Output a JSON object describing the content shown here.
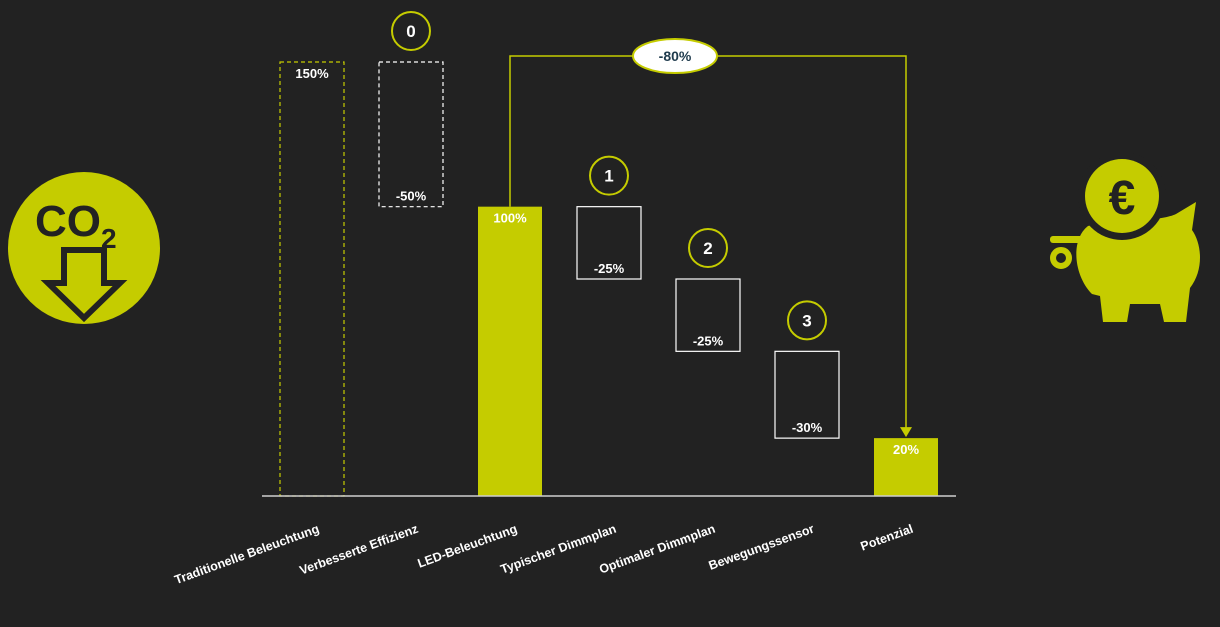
{
  "colors": {
    "background": "#222222",
    "accent": "#c5cc00",
    "text": "#ffffff",
    "axis": "#cfcfcf",
    "badge_text": "#1f3b4d"
  },
  "icons": {
    "left": "co2-reduction-icon",
    "left_text": "CO",
    "left_subscript": "2",
    "right": "piggy-bank-euro-icon",
    "right_symbol": "€"
  },
  "chart_data": {
    "type": "waterfall",
    "title": "",
    "xlabel": "",
    "ylabel": "",
    "ylim": [
      0,
      150
    ],
    "grid": false,
    "categories": [
      "Traditionelle Beleuchtung",
      "Verbesserte Effizienz",
      "LED-Beleuchtung",
      "Typischer Dimmplan",
      "Optimaler Dimmplan",
      "Bewegungssensor",
      "Potenzial"
    ],
    "bars": [
      {
        "category": "Traditionelle Beleuchtung",
        "start": 0,
        "end": 150,
        "value": 150,
        "label": "150%",
        "style": "dashed-accent",
        "step": ""
      },
      {
        "category": "Verbesserte Effizienz",
        "start": 100,
        "end": 150,
        "value": -50,
        "label": "-50%",
        "style": "dashed-white",
        "step": "0"
      },
      {
        "category": "LED-Beleuchtung",
        "start": 0,
        "end": 100,
        "value": 100,
        "label": "100%",
        "style": "solid-accent",
        "step": ""
      },
      {
        "category": "Typischer Dimmplan",
        "start": 75,
        "end": 100,
        "value": -25,
        "label": "-25%",
        "style": "outline-white",
        "step": "1"
      },
      {
        "category": "Optimaler Dimmplan",
        "start": 50,
        "end": 75,
        "value": -25,
        "label": "-25%",
        "style": "outline-white",
        "step": "2"
      },
      {
        "category": "Bewegungssensor",
        "start": 20,
        "end": 50,
        "value": -30,
        "label": "-30%",
        "style": "outline-white",
        "step": "3"
      },
      {
        "category": "Potenzial",
        "start": 0,
        "end": 20,
        "value": 20,
        "label": "20%",
        "style": "solid-accent",
        "step": ""
      }
    ],
    "annotations": [
      {
        "from": "LED-Beleuchtung",
        "to": "Potenzial",
        "label": "-80%"
      }
    ]
  }
}
